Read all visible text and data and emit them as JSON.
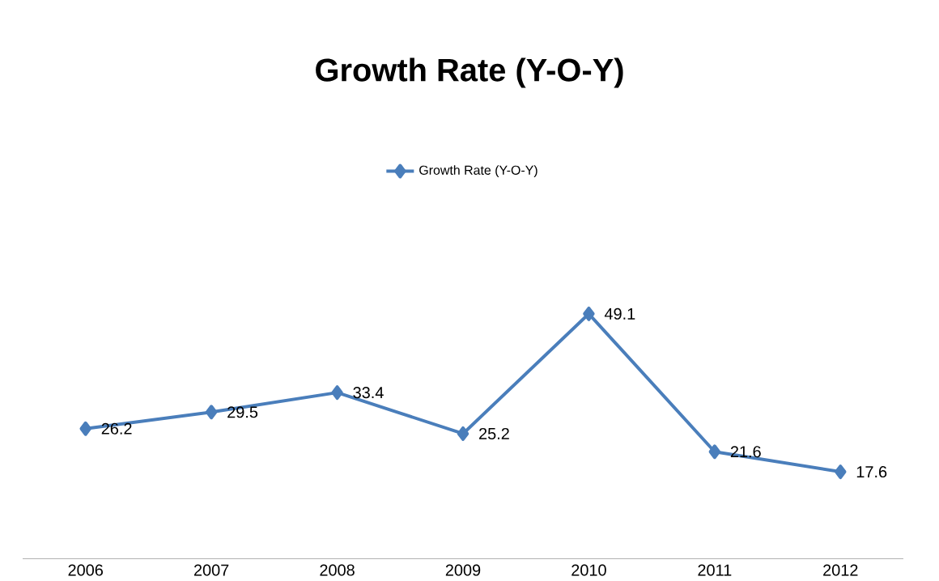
{
  "chart_data": {
    "type": "line",
    "title": "Growth Rate        (Y-O-Y)",
    "categories": [
      "2006",
      "2007",
      "2008",
      "2009",
      "2010",
      "2011",
      "2012"
    ],
    "series": [
      {
        "name": "Growth Rate        (Y-O-Y)",
        "color": "#4a7ebb",
        "values": [
          26.2,
          29.5,
          33.4,
          25.2,
          49.1,
          21.6,
          17.6
        ]
      }
    ],
    "data_labels": true,
    "legend": "top",
    "marker": "diamond",
    "line_style": "solid",
    "tick_labels": "x"
  }
}
